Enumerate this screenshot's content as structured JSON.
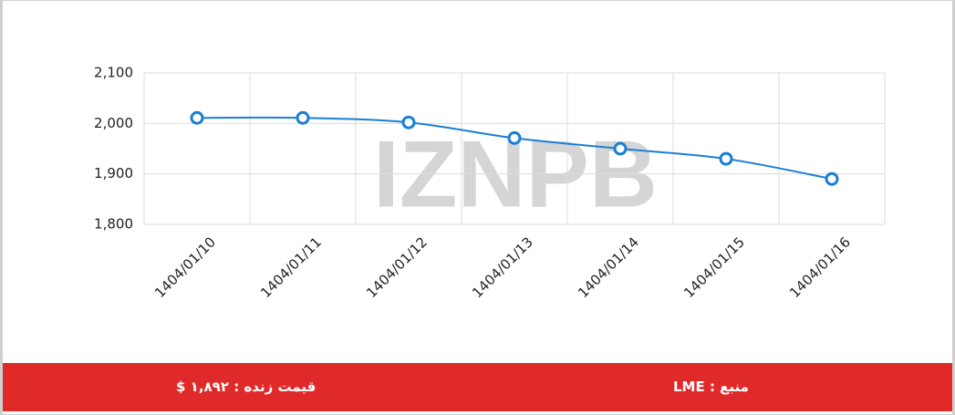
{
  "chart_data": {
    "type": "line",
    "categories": [
      "1404/01/10",
      "1404/01/11",
      "1404/01/12",
      "1404/01/13",
      "1404/01/14",
      "1404/01/15",
      "1404/01/16"
    ],
    "values": [
      2011,
      2011,
      2002,
      1971,
      1950,
      1930,
      1890
    ],
    "color": "#1a7fd4",
    "ylim": [
      1800,
      2100
    ],
    "yticks": [
      {
        "value": 1800,
        "label": "1,800"
      },
      {
        "value": 1900,
        "label": "1,900"
      },
      {
        "value": 2000,
        "label": "2,000"
      },
      {
        "value": 2100,
        "label": "2,100"
      }
    ],
    "grid": true,
    "watermark": "IZNPB"
  },
  "footer": {
    "live_price": "قیمت زنده : ۱,۸۹۲ $",
    "source": "منبع : LME"
  }
}
